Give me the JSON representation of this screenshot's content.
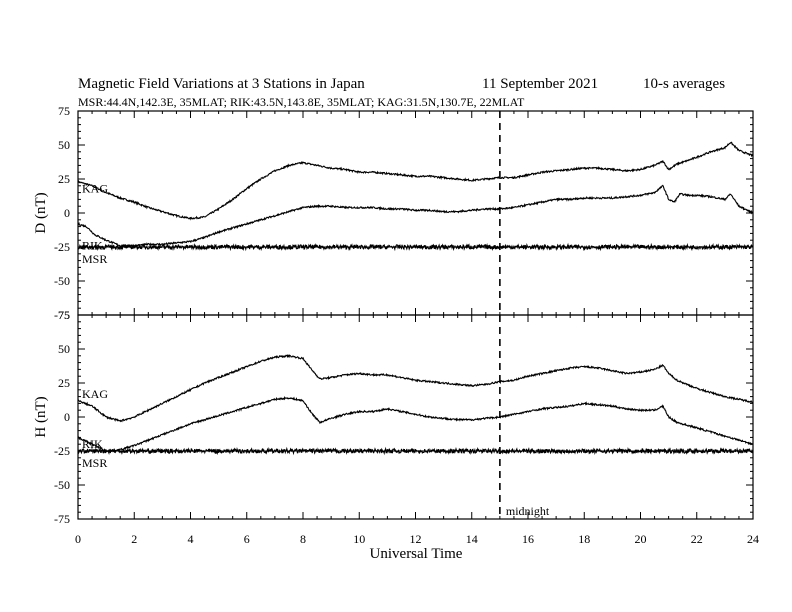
{
  "header": {
    "title": "Magnetic Field Variations at 3 Stations in Japan",
    "date": "11 September 2021",
    "averaging": "10-s averages",
    "stations_line": "MSR:44.4N,142.3E, 35MLAT;  RIK:43.5N,143.8E, 35MLAT;  KAG:31.5N,130.7E, 22MLAT"
  },
  "chart_data": [
    {
      "type": "line",
      "ylabel": "D (nT)",
      "xlabel": "Universal Time",
      "xlim": [
        0,
        24
      ],
      "ylim": [
        -75,
        75
      ],
      "xticks": [
        0,
        2,
        4,
        6,
        8,
        10,
        12,
        14,
        16,
        18,
        20,
        22,
        24
      ],
      "yticks": [
        75,
        50,
        25,
        0,
        -25,
        -50,
        -75
      ],
      "baseline": -25,
      "marker": {
        "x": 15,
        "label": ""
      },
      "series": [
        {
          "name": "KAG",
          "x": [
            0,
            0.5,
            1,
            1.5,
            2,
            2.5,
            3,
            3.5,
            4,
            4.5,
            5,
            5.5,
            6,
            6.5,
            7,
            7.5,
            8,
            8.5,
            9,
            9.5,
            10,
            10.5,
            11,
            11.5,
            12,
            12.5,
            13,
            13.5,
            14,
            14.5,
            15,
            15.5,
            16,
            16.5,
            17,
            17.5,
            18,
            18.5,
            19,
            19.5,
            20,
            20.5,
            20.8,
            21,
            21.3,
            21.6,
            22,
            22.5,
            23,
            23.2,
            23.5,
            24
          ],
          "y": [
            23,
            20,
            15,
            11,
            8,
            4,
            1,
            -2,
            -4,
            -3,
            3,
            10,
            18,
            25,
            31,
            35,
            37,
            35,
            33,
            32,
            30,
            30,
            29,
            28,
            27,
            27,
            26,
            25,
            24,
            25,
            26,
            26,
            28,
            30,
            31,
            32,
            33,
            33,
            32,
            31,
            32,
            35,
            38,
            32,
            36,
            38,
            41,
            45,
            48,
            52,
            46,
            42
          ],
          "label_y": 18
        },
        {
          "name": "RIK",
          "x": [
            0,
            0.3,
            0.6,
            1,
            1.5,
            2,
            2.5,
            3,
            3.5,
            4,
            4.5,
            5,
            5.5,
            6,
            6.5,
            7,
            7.5,
            8,
            8.5,
            9,
            9.5,
            10,
            10.5,
            11,
            11.5,
            12,
            12.5,
            13,
            13.5,
            14,
            14.5,
            15,
            15.5,
            16,
            16.5,
            17,
            17.5,
            18,
            18.5,
            19,
            19.5,
            20,
            20.5,
            20.8,
            21,
            21.2,
            21.4,
            21.7,
            22,
            22.5,
            23,
            23.2,
            23.5,
            24
          ],
          "y": [
            -8,
            -10,
            -16,
            -20,
            -24,
            -24,
            -23,
            -23,
            -22,
            -21,
            -18,
            -14,
            -11,
            -8,
            -5,
            -2,
            1,
            4,
            5,
            5,
            4,
            4,
            4,
            3,
            3,
            2,
            2,
            1,
            1,
            2,
            3,
            3,
            4,
            6,
            8,
            10,
            10,
            11,
            11,
            11,
            12,
            13,
            15,
            20,
            10,
            8,
            14,
            13,
            13,
            12,
            10,
            14,
            5,
            0
          ],
          "label_y": -24
        },
        {
          "name": "MSR",
          "x": [
            0,
            24
          ],
          "y": [
            -25,
            -25
          ],
          "noise": 1.6,
          "label_y": -34
        }
      ]
    },
    {
      "type": "line",
      "ylabel": "H (nT)",
      "xlabel": "Universal Time",
      "xlim": [
        0,
        24
      ],
      "ylim": [
        -75,
        75
      ],
      "xticks": [
        0,
        2,
        4,
        6,
        8,
        10,
        12,
        14,
        16,
        18,
        20,
        22,
        24
      ],
      "yticks": [
        75,
        50,
        25,
        0,
        -25,
        -50,
        -75
      ],
      "baseline": -25,
      "marker": {
        "x": 15,
        "label": "midnight"
      },
      "series": [
        {
          "name": "KAG",
          "x": [
            0,
            0.5,
            1,
            1.5,
            2,
            2.5,
            3,
            3.5,
            4,
            4.5,
            5,
            5.5,
            6,
            6.5,
            7,
            7.5,
            8,
            8.3,
            8.6,
            9,
            9.5,
            10,
            10.5,
            11,
            11.5,
            12,
            12.5,
            13,
            13.5,
            14,
            14.5,
            15,
            15.5,
            16,
            16.5,
            17,
            17.5,
            18,
            18.5,
            19,
            19.5,
            20,
            20.5,
            20.8,
            21,
            21.3,
            22,
            22.5,
            23,
            23.5,
            24
          ],
          "y": [
            12,
            8,
            0,
            -3,
            0,
            5,
            10,
            15,
            20,
            25,
            29,
            33,
            37,
            41,
            44,
            45,
            43,
            35,
            28,
            29,
            31,
            32,
            31,
            31,
            29,
            27,
            26,
            25,
            24,
            23,
            24,
            26,
            27,
            30,
            32,
            34,
            36,
            37,
            36,
            34,
            32,
            33,
            35,
            38,
            32,
            27,
            21,
            18,
            15,
            13,
            11
          ],
          "label_y": 17
        },
        {
          "name": "RIK",
          "x": [
            0,
            0.5,
            1,
            1.5,
            2,
            2.5,
            3,
            3.5,
            4,
            4.5,
            5,
            5.5,
            6,
            6.5,
            7,
            7.5,
            8,
            8.3,
            8.6,
            9,
            9.5,
            10,
            10.5,
            11,
            11.5,
            12,
            12.5,
            13,
            13.5,
            14,
            14.5,
            15,
            15.5,
            16,
            16.5,
            17,
            17.5,
            18,
            18.5,
            19,
            19.5,
            20,
            20.5,
            20.8,
            21,
            21.3,
            22,
            22.5,
            23,
            23.5,
            24
          ],
          "y": [
            -15,
            -20,
            -25,
            -24,
            -21,
            -17,
            -13,
            -9,
            -5,
            -2,
            1,
            4,
            7,
            10,
            13,
            14,
            12,
            3,
            -4,
            -1,
            2,
            4,
            4,
            6,
            4,
            2,
            0,
            -1,
            -2,
            -2,
            -1,
            0,
            2,
            4,
            6,
            7,
            8,
            10,
            9,
            8,
            6,
            5,
            5,
            8,
            0,
            -4,
            -8,
            -11,
            -14,
            -17,
            -20
          ],
          "label_y": -20
        },
        {
          "name": "MSR",
          "x": [
            0,
            24
          ],
          "y": [
            -25,
            -25
          ],
          "noise": 1.6,
          "label_y": -34
        }
      ]
    }
  ]
}
